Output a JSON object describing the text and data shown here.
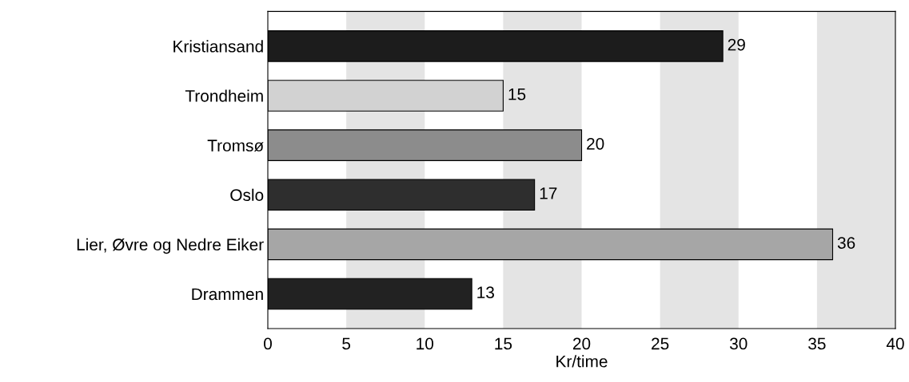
{
  "chart_data": {
    "type": "bar",
    "orientation": "horizontal",
    "xlabel": "Kr/time",
    "categories": [
      "Kristiansand",
      "Trondheim",
      "Tromsø",
      "Oslo",
      "Lier, Øvre og Nedre Eiker",
      "Drammen"
    ],
    "values": [
      29,
      15,
      20,
      17,
      36,
      13
    ],
    "colors": [
      "#1c1c1c",
      "#d2d2d2",
      "#8c8c8c",
      "#2e2e2e",
      "#a6a6a6",
      "#222222"
    ],
    "xlim": [
      0,
      40
    ],
    "xticks": [
      0,
      5,
      10,
      15,
      20,
      25,
      30,
      35,
      40
    ],
    "bands": [
      {
        "axis": "x",
        "from": 5,
        "to": 10,
        "color": "#e4e4e4"
      },
      {
        "axis": "x",
        "from": 15,
        "to": 20,
        "color": "#e4e4e4"
      },
      {
        "axis": "x",
        "from": 25,
        "to": 30,
        "color": "#e4e4e4"
      },
      {
        "axis": "x",
        "from": 35,
        "to": 40,
        "color": "#e4e4e4"
      }
    ],
    "data_labels": true,
    "grid": false
  }
}
